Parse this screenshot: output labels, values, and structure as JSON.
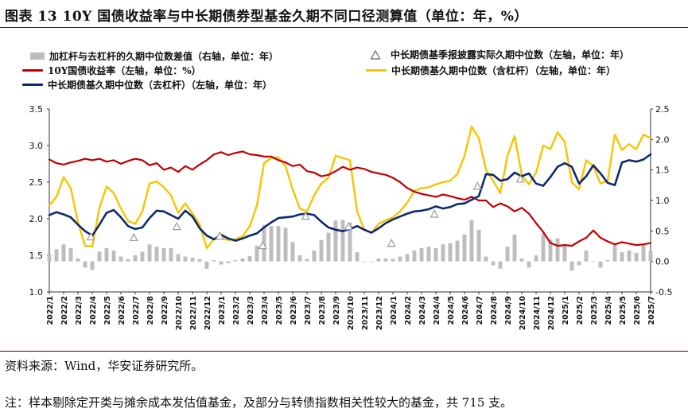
{
  "title": "图表 13 10Y 国债收益率与中长期债券型基金久期不同口径测算值（单位：年，%）",
  "source": "资料来源：Wind，华安证券研究所。",
  "note": "注：样本剔除定开类与摊余成本发估值基金，及部分与转债指数相关性较大的基金，共 715 支。",
  "colors": {
    "bar": "#bdbdbd",
    "yield": "#c00000",
    "median_ex": "#0d2a6b",
    "median_in": "#f7c400",
    "marker": "#9a9a9a",
    "rule": "#7a0000"
  },
  "legend": [
    {
      "key": "bar",
      "label": "加杠杆与去杠杆的久期中位数差值（右轴，单位：年）",
      "icon": "bar-swatch"
    },
    {
      "key": "marker",
      "label": "中长期债基季报披露实际久期中位数（左轴，单位：年）",
      "icon": "triangle-marker"
    },
    {
      "key": "yield",
      "label": "10Y国债收益率（左轴，单位：%）",
      "icon": "red-line"
    },
    {
      "key": "median_in",
      "label": "中长期债基久期中位数（含杠杆）（左轴，单位：年）",
      "icon": "yellow-line"
    },
    {
      "key": "median_ex",
      "label": "中长期债基久期中位数（去杠杆）（左轴，单位：年）",
      "icon": "navy-line"
    }
  ],
  "chart_data": {
    "type": "line",
    "x_start": "2022/1",
    "x_end": "2025/7",
    "x_labels": [
      "2022/1",
      "2022/2",
      "2022/3",
      "2022/4",
      "2022/5",
      "2022/6",
      "2022/7",
      "2022/8",
      "2022/9",
      "2022/10",
      "2022/11",
      "2022/12",
      "2023/1",
      "2023/2",
      "2023/3",
      "2023/4",
      "2023/5",
      "2023/6",
      "2023/7",
      "2023/8",
      "2023/9",
      "2023/10",
      "2023/11",
      "2023/12",
      "2024/1",
      "2024/2",
      "2024/3",
      "2024/4",
      "2024/5",
      "2024/6",
      "2024/7",
      "2024/8",
      "2024/9",
      "2024/10",
      "2024/11",
      "2024/12",
      "2025/1",
      "2025/2",
      "2025/3",
      "2025/4",
      "2025/5",
      "2025/6",
      "2025/7"
    ],
    "left_axis": {
      "ylim": [
        1.0,
        3.5
      ],
      "ticks": [
        "1.0",
        "1.5",
        "2.0",
        "2.5",
        "3.0",
        "3.5"
      ],
      "tick_values": [
        1.0,
        1.5,
        2.0,
        2.5,
        3.0,
        3.5
      ]
    },
    "right_axis": {
      "ylim": [
        -0.5,
        2.5
      ],
      "ticks": [
        "-0.5",
        "0.0",
        "0.5",
        "1.0",
        "1.5",
        "2.0",
        "2.5"
      ],
      "tick_values": [
        -0.5,
        0,
        0.5,
        1.0,
        1.5,
        2.0,
        2.5
      ]
    },
    "series": [
      {
        "name": "10Y国债收益率",
        "key": "yield",
        "axis": "left",
        "style": "line",
        "x": [
          0,
          0.5,
          1,
          1.5,
          2,
          2.5,
          3,
          3.5,
          4,
          4.5,
          5,
          5.5,
          6,
          6.5,
          7,
          7.5,
          8,
          8.5,
          9,
          9.5,
          10,
          10.5,
          11,
          11.5,
          12,
          12.5,
          13,
          13.5,
          14,
          14.5,
          15,
          15.5,
          16,
          16.5,
          17,
          17.5,
          18,
          18.5,
          19,
          19.5,
          20,
          20.5,
          21,
          21.5,
          22,
          22.5,
          23,
          23.5,
          24,
          24.5,
          25,
          25.5,
          26,
          26.5,
          27,
          27.5,
          28,
          28.5,
          29,
          29.5,
          30,
          30.5,
          31,
          31.5,
          32,
          32.5,
          33,
          33.5,
          34,
          34.5,
          35,
          35.5,
          36,
          36.5,
          37,
          37.5,
          38,
          38.5,
          39,
          39.5,
          40,
          40.5,
          41,
          41.5,
          42
        ],
        "values": [
          2.81,
          2.76,
          2.74,
          2.77,
          2.79,
          2.82,
          2.8,
          2.82,
          2.78,
          2.8,
          2.75,
          2.79,
          2.82,
          2.8,
          2.73,
          2.76,
          2.67,
          2.7,
          2.64,
          2.72,
          2.67,
          2.74,
          2.8,
          2.88,
          2.91,
          2.87,
          2.9,
          2.92,
          2.88,
          2.87,
          2.85,
          2.85,
          2.8,
          2.77,
          2.72,
          2.74,
          2.65,
          2.63,
          2.58,
          2.6,
          2.65,
          2.71,
          2.67,
          2.7,
          2.68,
          2.64,
          2.62,
          2.6,
          2.56,
          2.5,
          2.42,
          2.37,
          2.34,
          2.32,
          2.3,
          2.33,
          2.31,
          2.28,
          2.26,
          2.3,
          2.25,
          2.25,
          2.16,
          2.21,
          2.17,
          2.1,
          2.15,
          2.07,
          1.94,
          1.82,
          1.67,
          1.63,
          1.64,
          1.63,
          1.69,
          1.74,
          1.84,
          1.74,
          1.69,
          1.65,
          1.68,
          1.66,
          1.64,
          1.65,
          1.67
        ]
      },
      {
        "name": "中长期债基久期中位数（去杠杆）",
        "key": "median_ex",
        "axis": "left",
        "style": "line",
        "x": [
          0,
          0.5,
          1,
          1.5,
          2,
          2.5,
          3,
          3.5,
          4,
          4.5,
          5,
          5.5,
          6,
          6.5,
          7,
          7.5,
          8,
          8.5,
          9,
          9.5,
          10,
          10.5,
          11,
          11.5,
          12,
          12.5,
          13,
          13.5,
          14,
          14.5,
          15,
          15.5,
          16,
          16.5,
          17,
          17.5,
          18,
          18.5,
          19,
          19.5,
          20,
          20.5,
          21,
          21.5,
          22,
          22.5,
          23,
          23.5,
          24,
          24.5,
          25,
          25.5,
          26,
          26.5,
          27,
          27.5,
          28,
          28.5,
          29,
          29.5,
          30,
          30.5,
          31,
          31.5,
          32,
          32.5,
          33,
          33.5,
          34,
          34.5,
          35,
          35.5,
          36,
          36.5,
          37,
          37.5,
          38,
          38.5,
          39,
          39.5,
          40,
          40.5,
          41,
          41.5,
          42
        ],
        "values": [
          2.05,
          2.09,
          2.06,
          2.02,
          1.92,
          1.83,
          1.77,
          1.92,
          2.08,
          2.12,
          2.02,
          1.9,
          1.86,
          1.88,
          2.01,
          2.11,
          2.1,
          2.05,
          2.0,
          2.11,
          2.03,
          1.87,
          1.77,
          1.72,
          1.78,
          1.73,
          1.7,
          1.73,
          1.77,
          1.8,
          1.88,
          1.95,
          2.01,
          2.02,
          2.03,
          2.06,
          2.07,
          2.05,
          1.96,
          1.88,
          1.85,
          1.83,
          1.86,
          1.9,
          1.85,
          1.81,
          1.87,
          1.94,
          1.99,
          2.03,
          2.07,
          2.1,
          2.11,
          2.13,
          2.17,
          2.14,
          2.16,
          2.2,
          2.21,
          2.26,
          2.31,
          2.61,
          2.6,
          2.52,
          2.54,
          2.63,
          2.58,
          2.62,
          2.48,
          2.45,
          2.57,
          2.71,
          2.76,
          2.71,
          2.48,
          2.58,
          2.73,
          2.62,
          2.49,
          2.46,
          2.77,
          2.8,
          2.78,
          2.81,
          2.88
        ]
      },
      {
        "name": "中长期债基久期中位数（含杠杆）",
        "key": "median_in",
        "axis": "left",
        "style": "line",
        "x": [
          0,
          0.5,
          1,
          1.5,
          2,
          2.5,
          3,
          3.5,
          4,
          4.5,
          5,
          5.5,
          6,
          6.5,
          7,
          7.5,
          8,
          8.5,
          9,
          9.5,
          10,
          10.5,
          11,
          11.5,
          12,
          12.5,
          13,
          13.5,
          14,
          14.5,
          15,
          15.5,
          16,
          16.5,
          17,
          17.5,
          18,
          18.5,
          19,
          19.5,
          20,
          20.5,
          21,
          21.5,
          22,
          22.5,
          23,
          23.5,
          24,
          24.5,
          25,
          25.5,
          26,
          26.5,
          27,
          27.5,
          28,
          28.5,
          29,
          29.5,
          30,
          30.5,
          31,
          31.5,
          32,
          32.5,
          33,
          33.5,
          34,
          34.5,
          35,
          35.5,
          36,
          36.5,
          37,
          37.5,
          38,
          38.5,
          39,
          39.5,
          40,
          40.5,
          41,
          41.5,
          42
        ],
        "values": [
          2.18,
          2.3,
          2.57,
          2.42,
          1.95,
          1.63,
          1.62,
          2.15,
          2.44,
          2.35,
          2.14,
          1.97,
          1.93,
          2.1,
          2.48,
          2.51,
          2.43,
          2.32,
          2.08,
          2.21,
          2.07,
          1.92,
          1.6,
          1.72,
          1.73,
          1.71,
          1.72,
          1.76,
          1.9,
          2.18,
          2.76,
          2.83,
          2.84,
          2.72,
          2.4,
          2.14,
          2.1,
          2.32,
          2.48,
          2.56,
          2.86,
          2.83,
          2.8,
          2.1,
          1.85,
          1.81,
          1.93,
          1.98,
          2.02,
          2.1,
          2.22,
          2.38,
          2.42,
          2.43,
          2.47,
          2.5,
          2.52,
          2.61,
          2.86,
          3.26,
          3.1,
          2.67,
          2.52,
          2.35,
          2.86,
          3.13,
          2.6,
          2.47,
          2.63,
          3.0,
          2.95,
          3.18,
          3.05,
          2.5,
          2.4,
          2.8,
          2.72,
          2.48,
          2.52,
          3.15,
          2.94,
          3.02,
          2.95,
          3.15,
          3.1
        ]
      },
      {
        "name": "中长期债基季报披露实际久期中位数",
        "key": "marker",
        "axis": "left",
        "style": "marker",
        "x": [
          2.9,
          5.9,
          8.9,
          11.9,
          14.9,
          17.9,
          20.9,
          23.9,
          26.9,
          29.9,
          32.9
        ],
        "values": [
          1.75,
          1.74,
          1.89,
          1.76,
          1.63,
          2.03,
          1.89,
          1.66,
          2.06,
          2.44,
          2.54
        ]
      },
      {
        "name": "加杠杆与去杠杆的久期中位数差值",
        "key": "bar",
        "axis": "right",
        "style": "bar",
        "x": [
          0,
          0.5,
          1,
          1.5,
          2,
          2.5,
          3,
          3.5,
          4,
          4.5,
          5,
          5.5,
          6,
          6.5,
          7,
          7.5,
          8,
          8.5,
          9,
          9.5,
          10,
          10.5,
          11,
          11.5,
          12,
          12.5,
          13,
          13.5,
          14,
          14.5,
          15,
          15.5,
          16,
          16.5,
          17,
          17.5,
          18,
          18.5,
          19,
          19.5,
          20,
          20.5,
          21,
          21.5,
          22,
          22.5,
          23,
          23.5,
          24,
          24.5,
          25,
          25.5,
          26,
          26.5,
          27,
          27.5,
          28,
          28.5,
          29,
          29.5,
          30,
          30.5,
          31,
          31.5,
          32,
          32.5,
          33,
          33.5,
          34,
          34.5,
          35,
          35.5,
          36,
          36.5,
          37,
          37.5,
          38,
          38.5,
          39,
          39.5,
          40,
          40.5,
          41,
          41.5,
          42
        ],
        "values": [
          0.12,
          0.2,
          0.28,
          0.22,
          0.05,
          -0.1,
          -0.14,
          0.16,
          0.22,
          0.18,
          0.08,
          0.04,
          0.1,
          0.16,
          0.28,
          0.24,
          0.22,
          0.22,
          0.12,
          0.08,
          0.06,
          0.04,
          -0.12,
          0.02,
          -0.05,
          -0.03,
          0.02,
          0.05,
          0.09,
          0.26,
          0.6,
          0.58,
          0.58,
          0.55,
          0.32,
          0.1,
          0.04,
          0.18,
          0.35,
          0.47,
          0.67,
          0.68,
          0.64,
          0.15,
          0.0,
          0.0,
          0.05,
          0.05,
          0.04,
          0.08,
          0.12,
          0.18,
          0.22,
          0.24,
          0.22,
          0.28,
          0.3,
          0.34,
          0.44,
          0.68,
          0.52,
          0.08,
          -0.06,
          -0.12,
          0.24,
          0.44,
          0.05,
          -0.1,
          0.1,
          0.46,
          0.36,
          0.38,
          0.25,
          -0.15,
          -0.06,
          0.18,
          -0.01,
          -0.1,
          0.02,
          0.3,
          0.15,
          0.18,
          0.14,
          0.28,
          0.17
        ]
      }
    ]
  }
}
